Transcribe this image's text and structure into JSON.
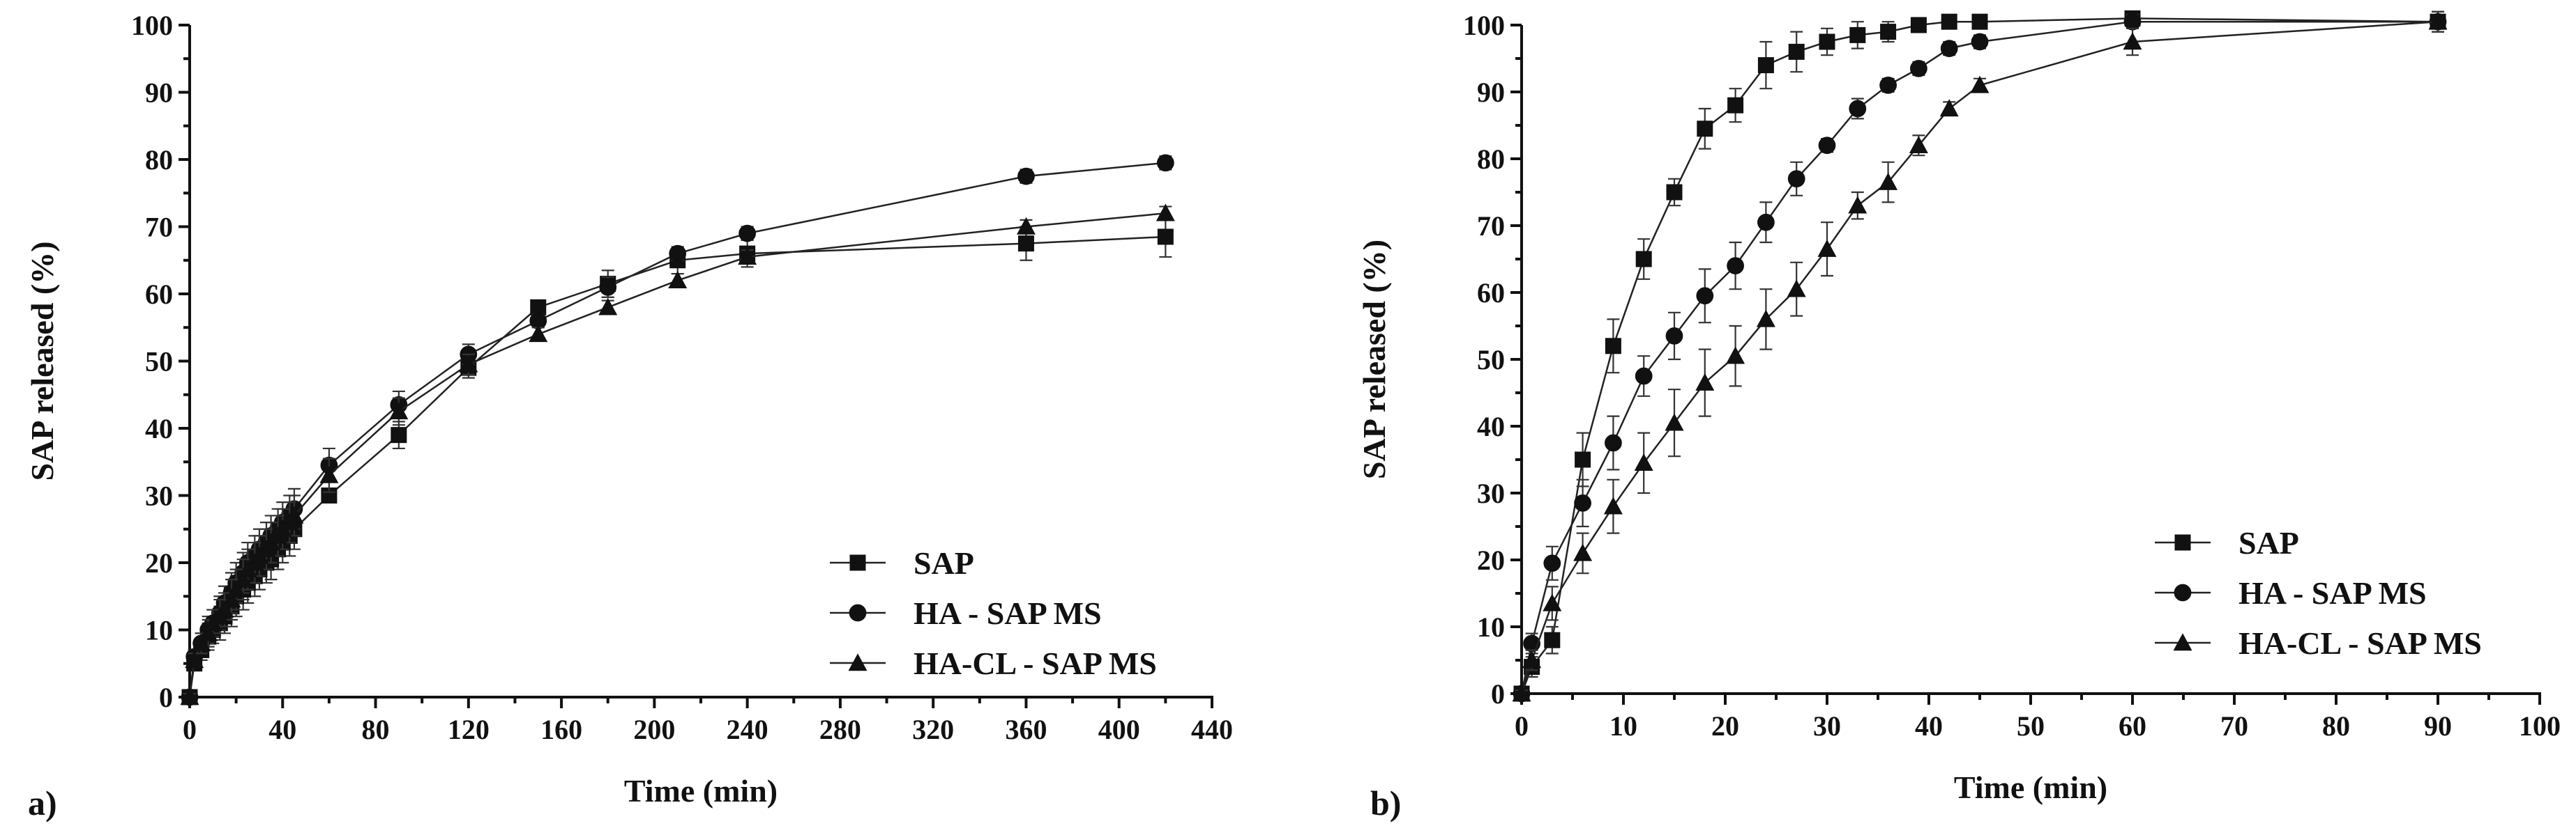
{
  "chart_data": [
    {
      "type": "line",
      "panel_label": "a)",
      "xlabel": "Time (min)",
      "ylabel": "SAP released (%)",
      "xlim": [
        0,
        440
      ],
      "ylim": [
        0,
        100
      ],
      "xticks": [
        0,
        40,
        80,
        120,
        160,
        200,
        240,
        280,
        320,
        360,
        400,
        440
      ],
      "yticks": [
        0,
        10,
        20,
        30,
        40,
        50,
        60,
        70,
        80,
        90,
        100
      ],
      "grid": false,
      "legend_position": "bottom-right",
      "series": [
        {
          "name": "SAP",
          "marker": "square",
          "x": [
            0,
            2,
            5,
            8,
            10,
            13,
            15,
            18,
            20,
            23,
            25,
            28,
            30,
            33,
            35,
            38,
            40,
            43,
            45,
            60,
            90,
            120,
            150,
            180,
            210,
            240,
            360,
            420
          ],
          "y": [
            0,
            5,
            7,
            9,
            10,
            11,
            12,
            13.5,
            15,
            16,
            17,
            18,
            19,
            20,
            20.5,
            22,
            23,
            24,
            25,
            30,
            39,
            49,
            58,
            61.5,
            65,
            66,
            67.5,
            68.5
          ],
          "err": [
            0.5,
            1,
            1.5,
            2,
            2,
            2.5,
            2.5,
            3,
            3,
            3,
            3,
            3,
            3,
            3,
            3,
            3,
            3,
            3,
            3,
            1,
            2,
            1.5,
            1,
            2,
            2,
            2,
            2.5,
            3
          ]
        },
        {
          "name": "HA - SAP MS",
          "marker": "circle",
          "x": [
            0,
            2,
            5,
            8,
            10,
            13,
            15,
            18,
            20,
            23,
            25,
            28,
            30,
            33,
            35,
            38,
            40,
            43,
            45,
            60,
            90,
            120,
            150,
            180,
            210,
            240,
            360,
            420
          ],
          "y": [
            0,
            6,
            8,
            10,
            11,
            12.5,
            14,
            15.5,
            17,
            18.5,
            20,
            21,
            22,
            23,
            24,
            25,
            26,
            27,
            28,
            34.5,
            43.5,
            51,
            56,
            61,
            66,
            69,
            77.5,
            79.5
          ],
          "err": [
            0.5,
            1,
            1.5,
            2,
            2,
            2.5,
            2.5,
            3,
            3,
            3,
            3,
            3,
            3,
            3,
            3,
            3,
            3,
            3,
            3,
            2.5,
            2,
            1.5,
            1,
            1.5,
            1,
            1,
            1,
            1
          ]
        },
        {
          "name": "HA-CL - SAP MS",
          "marker": "triangle",
          "x": [
            0,
            2,
            5,
            8,
            10,
            13,
            15,
            18,
            20,
            23,
            25,
            28,
            30,
            33,
            35,
            38,
            40,
            43,
            45,
            60,
            90,
            120,
            150,
            180,
            210,
            240,
            360,
            420
          ],
          "y": [
            0,
            5.5,
            8,
            9.5,
            11,
            12,
            13,
            14.5,
            16,
            17.5,
            19,
            20,
            21,
            22,
            23,
            24,
            25,
            26,
            27,
            33,
            42.5,
            49.5,
            54,
            58,
            62,
            65.5,
            70,
            72
          ],
          "err": [
            0.5,
            1,
            1.5,
            2,
            2,
            2.5,
            2.5,
            3,
            3,
            3,
            3,
            3,
            3,
            3,
            3,
            3,
            3,
            3,
            3,
            2.5,
            2,
            1.5,
            1,
            1,
            1,
            1,
            1,
            1
          ]
        }
      ]
    },
    {
      "type": "line",
      "panel_label": "b)",
      "xlabel": "Time (min)",
      "ylabel": "SAP released (%)",
      "xlim": [
        0,
        100
      ],
      "ylim": [
        0,
        100
      ],
      "xticks": [
        0,
        10,
        20,
        30,
        40,
        50,
        60,
        70,
        80,
        90,
        100
      ],
      "yticks": [
        0,
        10,
        20,
        30,
        40,
        50,
        60,
        70,
        80,
        90,
        100
      ],
      "grid": false,
      "legend_position": "bottom-right",
      "series": [
        {
          "name": "SAP",
          "marker": "square",
          "x": [
            0,
            1,
            3,
            6,
            9,
            12,
            15,
            18,
            21,
            24,
            27,
            30,
            33,
            36,
            39,
            42,
            45,
            60,
            90
          ],
          "y": [
            0,
            4,
            8,
            35,
            52,
            65,
            75,
            84.5,
            88,
            94,
            96,
            97.5,
            98.5,
            99,
            100,
            100.5,
            100.5,
            101,
            100.5
          ],
          "err": [
            0.5,
            1.5,
            2,
            4,
            4,
            3,
            2,
            3,
            2.5,
            3.5,
            3,
            2,
            2,
            1.5,
            1,
            0.5,
            0.5,
            0.5,
            1.5
          ]
        },
        {
          "name": "HA - SAP MS",
          "marker": "circle",
          "x": [
            0,
            1,
            3,
            6,
            9,
            12,
            15,
            18,
            21,
            24,
            27,
            30,
            33,
            36,
            39,
            42,
            45,
            60,
            90
          ],
          "y": [
            0,
            7.5,
            19.5,
            28.5,
            37.5,
            47.5,
            53.5,
            59.5,
            64,
            70.5,
            77,
            82,
            87.5,
            91,
            93.5,
            96.5,
            97.5,
            100.5,
            100.5
          ],
          "err": [
            0.5,
            1.5,
            2.5,
            3.5,
            4,
            3,
            3.5,
            4,
            3.5,
            3,
            2.5,
            1,
            1.5,
            1,
            1,
            1,
            1,
            1,
            1.5
          ]
        },
        {
          "name": "HA-CL - SAP MS",
          "marker": "triangle",
          "x": [
            0,
            1,
            3,
            6,
            9,
            12,
            15,
            18,
            21,
            24,
            27,
            30,
            33,
            36,
            39,
            42,
            45,
            60,
            90
          ],
          "y": [
            0,
            5,
            13.5,
            21,
            28,
            34.5,
            40.5,
            46.5,
            50.5,
            56,
            60.5,
            66.5,
            73,
            76.5,
            82,
            87.5,
            91,
            97.5,
            100.5
          ],
          "err": [
            0.5,
            1.5,
            2.5,
            3,
            4,
            4.5,
            5,
            5,
            4.5,
            4.5,
            4,
            4,
            2,
            3,
            1.5,
            1,
            1,
            2,
            1.5
          ]
        }
      ]
    }
  ]
}
